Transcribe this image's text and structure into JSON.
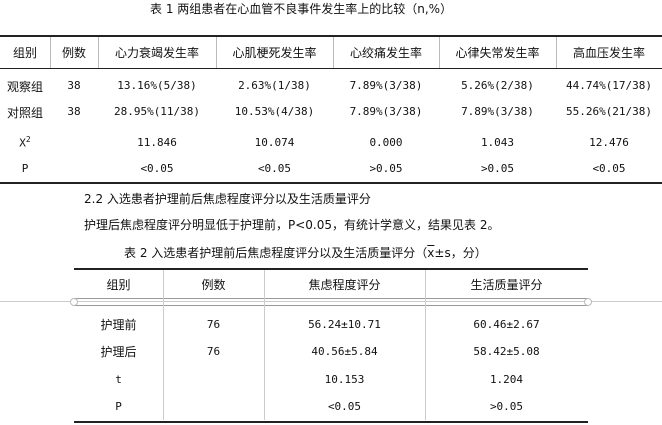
{
  "table1": {
    "caption": "表 1  两组患者在心血管不良事件发生率上的比较（n,%）",
    "headers": [
      "组别",
      "例数",
      "心力衰竭发生率",
      "心肌梗死发生率",
      "心绞痛发生率",
      "心律失常发生率",
      "高血压发生率"
    ],
    "rows": [
      [
        "观察组",
        "38",
        "13.16%(5/38)",
        "2.63%(1/38)",
        "7.89%(3/38)",
        "5.26%(2/38)",
        "44.74%(17/38)"
      ],
      [
        "对照组",
        "38",
        "28.95%(11/38)",
        "10.53%(4/38)",
        "7.89%(3/38)",
        "7.89%(3/38)",
        "55.26%(21/38)"
      ],
      [
        "X",
        "",
        "11.846",
        "10.074",
        "0.000",
        "1.043",
        "12.476"
      ],
      [
        "P",
        "",
        "<0.05",
        "<0.05",
        ">0.05",
        ">0.05",
        "<0.05"
      ]
    ],
    "chi_superscript": "2"
  },
  "section": {
    "heading": "2.2 入选患者护理前后焦虑程度评分以及生活质量评分",
    "paragraph": "护理后焦虑程度评分明显低于护理前，P<0.05，有统计学意义，结果见表 2。"
  },
  "table2": {
    "caption_prefix": "表 2  入选患者护理前后焦虑程度评分以及生活质量评分（",
    "caption_xbar": "x",
    "caption_suffix": "±s，分）",
    "headers": [
      "组别",
      "例数",
      "焦虑程度评分",
      "生活质量评分"
    ],
    "rows": [
      [
        "护理前",
        "76",
        "56.24±10.71",
        "60.46±2.67"
      ],
      [
        "护理后",
        "76",
        "40.56±5.84",
        "58.42±5.08"
      ],
      [
        "t",
        "",
        "10.153",
        "1.204"
      ],
      [
        "P",
        "",
        "<0.05",
        ">0.05"
      ]
    ]
  }
}
